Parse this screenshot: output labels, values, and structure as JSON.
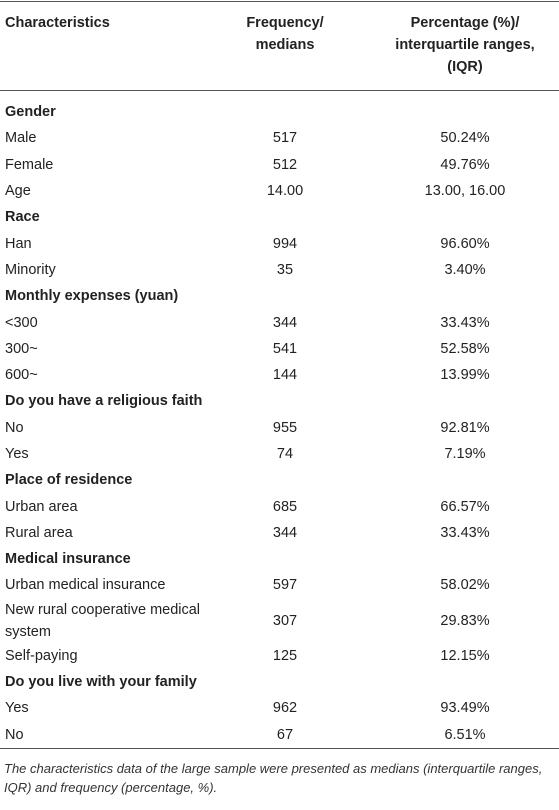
{
  "table": {
    "header": [
      "Characteristics",
      "Frequency/ medians",
      "Percentage (%)/ interquartile ranges, (IQR)"
    ],
    "rows": [
      [
        "Gender"
      ],
      [
        "Male",
        "517",
        "50.24%"
      ],
      [
        "Female",
        "512",
        "49.76%"
      ],
      [
        "Age",
        "14.00",
        "13.00, 16.00"
      ],
      [
        "Race"
      ],
      [
        "Han",
        "994",
        "96.60%"
      ],
      [
        "Minority",
        "35",
        "3.40%"
      ],
      [
        "Monthly expenses (yuan)"
      ],
      [
        "<300",
        "344",
        "33.43%"
      ],
      [
        "300~",
        "541",
        "52.58%"
      ],
      [
        "600~",
        "144",
        "13.99%"
      ],
      [
        "Do you have a religious faith"
      ],
      [
        "No",
        "955",
        "92.81%"
      ],
      [
        "Yes",
        "74",
        "7.19%"
      ],
      [
        "Place of residence"
      ],
      [
        "Urban area",
        "685",
        "66.57%"
      ],
      [
        "Rural area",
        "344",
        "33.43%"
      ],
      [
        "Medical insurance"
      ],
      [
        "Urban medical insurance",
        "597",
        "58.02%"
      ],
      [
        "New rural cooperative medical system",
        "307",
        "29.83%"
      ],
      [
        "Self-paying",
        "125",
        "12.15%"
      ],
      [
        "Do you live with your family"
      ],
      [
        "Yes",
        "962",
        "93.49%"
      ],
      [
        "No",
        "67",
        "6.51%"
      ]
    ],
    "footnote": "The characteristics data of the large sample were presented as medians (interquartile ranges, IQR) and frequency (percentage, %)."
  }
}
